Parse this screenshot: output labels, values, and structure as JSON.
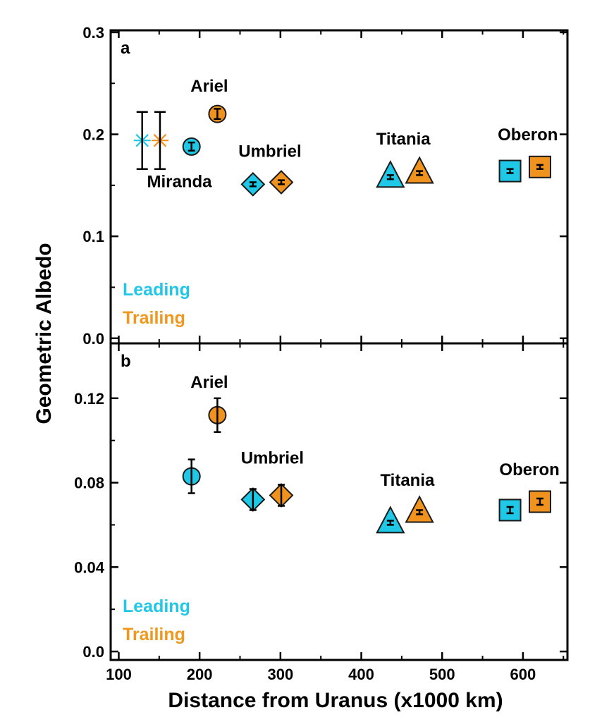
{
  "colors": {
    "leading": "#1ec8e6",
    "trailing": "#f0921e",
    "axis": "#000000",
    "legend_leading": "#22c6e6",
    "legend_trailing": "#f0981e"
  },
  "chart_data": [
    {
      "type": "scatter",
      "panel_label": "a",
      "ylabel": "Geometric Albedo",
      "xlabel": "",
      "xlim": [
        90,
        655
      ],
      "ylim": [
        -0.005,
        0.302
      ],
      "yticks": [
        0.0,
        0.1,
        0.2,
        0.3
      ],
      "ytick_labels": [
        "0.0",
        "0.1",
        "0.2",
        "0.3"
      ],
      "legend": {
        "items": [
          "Leading",
          "Trailing"
        ],
        "position": "bottom-left"
      },
      "moons": [
        {
          "name": "Miranda",
          "marker": "asterisk",
          "label_x": 175,
          "label_y": 0.148,
          "points": [
            {
              "series": "Leading",
              "x": 129,
              "y": 0.194,
              "err": 0.028
            },
            {
              "series": "Trailing",
              "x": 151,
              "y": 0.194,
              "err": 0.028
            }
          ]
        },
        {
          "name": "Ariel",
          "marker": "circle",
          "label_x": 212,
          "label_y": 0.242,
          "points": [
            {
              "series": "Leading",
              "x": 190,
              "y": 0.188,
              "err": 0.004
            },
            {
              "series": "Trailing",
              "x": 222,
              "y": 0.22,
              "err": 0.005
            }
          ]
        },
        {
          "name": "Umbriel",
          "marker": "diamond",
          "label_x": 287,
          "label_y": 0.178,
          "points": [
            {
              "series": "Leading",
              "x": 266,
              "y": 0.151,
              "err": 0.002
            },
            {
              "series": "Trailing",
              "x": 301,
              "y": 0.153,
              "err": 0.002
            }
          ]
        },
        {
          "name": "Titania",
          "marker": "triangle",
          "label_x": 452,
          "label_y": 0.19,
          "points": [
            {
              "series": "Leading",
              "x": 436,
              "y": 0.158,
              "err": 0.002
            },
            {
              "series": "Trailing",
              "x": 472,
              "y": 0.162,
              "err": 0.002
            }
          ]
        },
        {
          "name": "Oberon",
          "marker": "square",
          "label_x": 606,
          "label_y": 0.194,
          "points": [
            {
              "series": "Leading",
              "x": 584,
              "y": 0.164,
              "err": 0.002
            },
            {
              "series": "Trailing",
              "x": 621,
              "y": 0.168,
              "err": 0.002
            }
          ]
        }
      ]
    },
    {
      "type": "scatter",
      "panel_label": "b",
      "ylabel": "",
      "xlabel": "Distance from Uranus (x1000 km)",
      "xlim": [
        90,
        655
      ],
      "ylim": [
        -0.004,
        0.146
      ],
      "yticks": [
        0.0,
        0.04,
        0.08,
        0.12
      ],
      "ytick_labels": [
        "0.0",
        "0.04",
        "0.08",
        "0.12"
      ],
      "xticks": [
        100,
        200,
        300,
        400,
        500,
        600
      ],
      "xtick_labels": [
        "100",
        "200",
        "300",
        "400",
        "500",
        "600"
      ],
      "legend": {
        "items": [
          "Leading",
          "Trailing"
        ],
        "position": "bottom-left"
      },
      "moons": [
        {
          "name": "Ariel",
          "marker": "circle",
          "label_x": 212,
          "label_y": 0.125,
          "points": [
            {
              "series": "Leading",
              "x": 190,
              "y": 0.083,
              "err": 0.008
            },
            {
              "series": "Trailing",
              "x": 222,
              "y": 0.112,
              "err": 0.008
            }
          ]
        },
        {
          "name": "Umbriel",
          "marker": "diamond",
          "label_x": 290,
          "label_y": 0.089,
          "points": [
            {
              "series": "Leading",
              "x": 266,
              "y": 0.072,
              "err": 0.005
            },
            {
              "series": "Trailing",
              "x": 301,
              "y": 0.074,
              "err": 0.005
            }
          ]
        },
        {
          "name": "Titania",
          "marker": "triangle",
          "label_x": 457,
          "label_y": 0.0785,
          "points": [
            {
              "series": "Leading",
              "x": 436,
              "y": 0.061,
              "err": 0.001
            },
            {
              "series": "Trailing",
              "x": 472,
              "y": 0.066,
              "err": 0.001
            }
          ]
        },
        {
          "name": "Oberon",
          "marker": "square",
          "label_x": 608,
          "label_y": 0.0835,
          "points": [
            {
              "series": "Leading",
              "x": 584,
              "y": 0.067,
              "err": 0.0015
            },
            {
              "series": "Trailing",
              "x": 621,
              "y": 0.071,
              "err": 0.0015
            }
          ]
        }
      ]
    }
  ]
}
